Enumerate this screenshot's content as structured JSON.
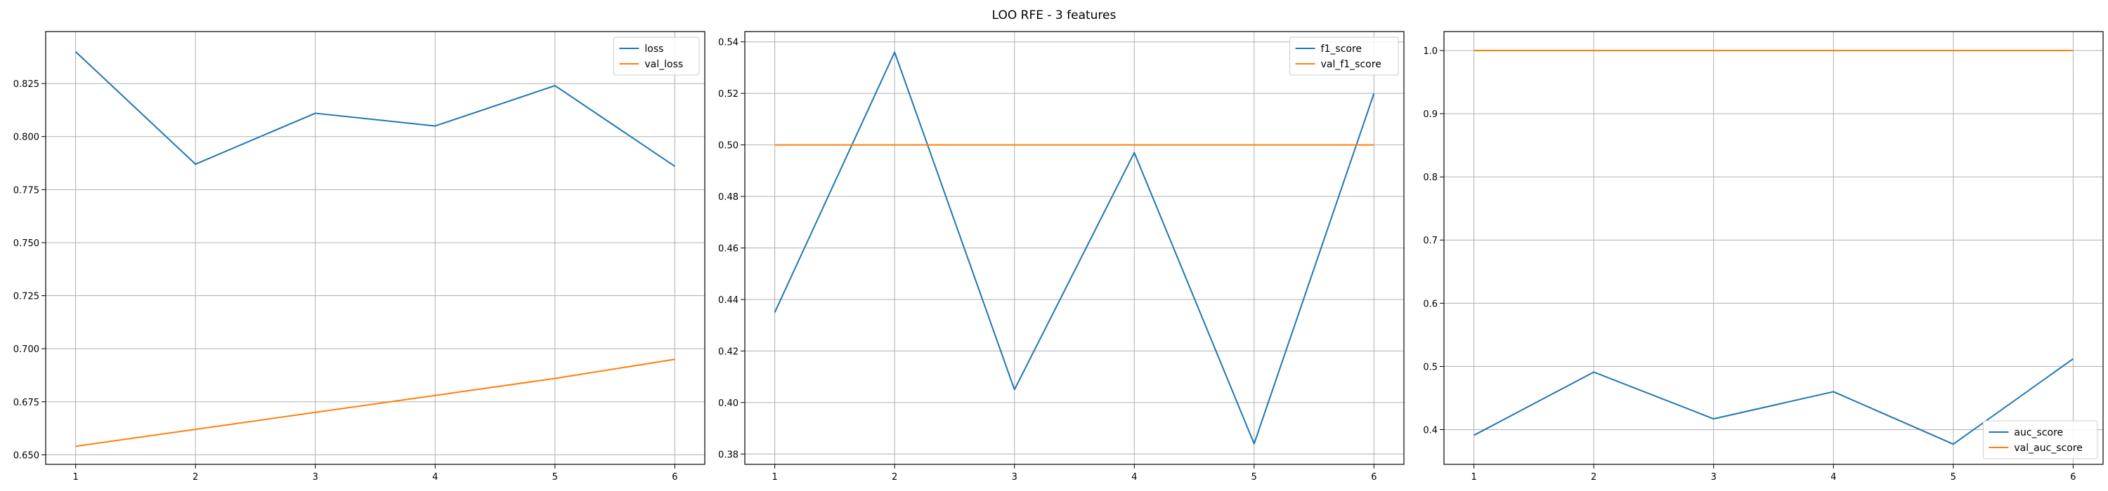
{
  "figure": {
    "title": "LOO RFE - 3 features"
  },
  "chart_data": [
    {
      "type": "line",
      "x": [
        1,
        2,
        3,
        4,
        5,
        6
      ],
      "ylim": [
        0.6455,
        0.8495
      ],
      "yticks": [
        "0.650",
        "0.675",
        "0.700",
        "0.725",
        "0.750",
        "0.775",
        "0.800",
        "0.825"
      ],
      "xticks": [
        "1",
        "2",
        "3",
        "4",
        "5",
        "6"
      ],
      "grid": true,
      "legend": "upper right",
      "series": [
        {
          "name": "loss",
          "color": "#1f77b4",
          "values": [
            0.84,
            0.787,
            0.811,
            0.805,
            0.824,
            0.786
          ]
        },
        {
          "name": "val_loss",
          "color": "#ff7f0e",
          "values": [
            0.654,
            0.662,
            0.67,
            0.678,
            0.686,
            0.695
          ]
        }
      ]
    },
    {
      "type": "line",
      "x": [
        1,
        2,
        3,
        4,
        5,
        6
      ],
      "ylim": [
        0.376,
        0.544
      ],
      "yticks": [
        "0.38",
        "0.40",
        "0.42",
        "0.44",
        "0.46",
        "0.48",
        "0.50",
        "0.52",
        "0.54"
      ],
      "xticks": [
        "1",
        "2",
        "3",
        "4",
        "5",
        "6"
      ],
      "grid": true,
      "legend": "upper right",
      "series": [
        {
          "name": "f1_score",
          "color": "#1f77b4",
          "values": [
            0.435,
            0.536,
            0.405,
            0.497,
            0.384,
            0.52
          ]
        },
        {
          "name": "val_f1_score",
          "color": "#ff7f0e",
          "values": [
            0.5,
            0.5,
            0.5,
            0.5,
            0.5,
            0.5
          ]
        }
      ]
    },
    {
      "type": "line",
      "x": [
        1,
        2,
        3,
        4,
        5,
        6
      ],
      "ylim": [
        0.345,
        1.03
      ],
      "yticks": [
        "0.4",
        "0.5",
        "0.6",
        "0.7",
        "0.8",
        "0.9",
        "1.0"
      ],
      "xticks": [
        "1",
        "2",
        "3",
        "4",
        "5",
        "6"
      ],
      "grid": true,
      "legend": "lower right",
      "series": [
        {
          "name": "auc_score",
          "color": "#1f77b4",
          "values": [
            0.391,
            0.491,
            0.417,
            0.46,
            0.377,
            0.512
          ]
        },
        {
          "name": "val_auc_score",
          "color": "#ff7f0e",
          "values": [
            1.0,
            1.0,
            1.0,
            1.0,
            1.0,
            1.0
          ]
        }
      ]
    }
  ]
}
